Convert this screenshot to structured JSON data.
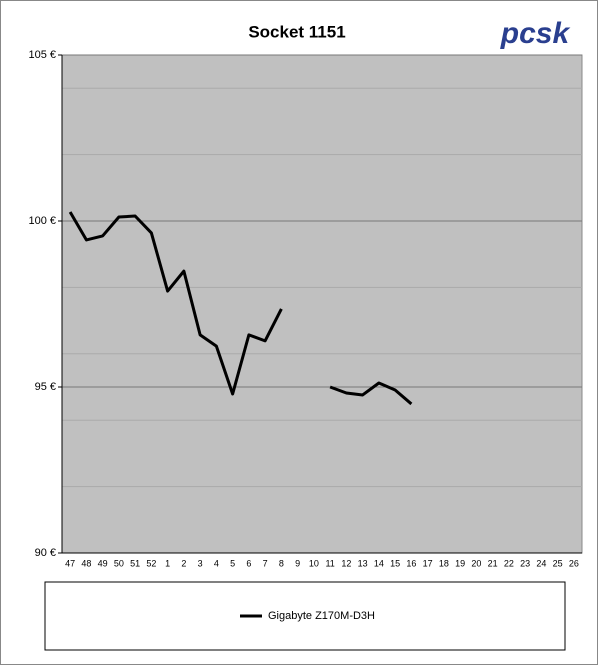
{
  "chart_data": {
    "type": "line",
    "title": "Socket 1151",
    "logo": "pcsk",
    "categories": [
      "47",
      "48",
      "49",
      "50",
      "51",
      "52",
      "1",
      "2",
      "3",
      "4",
      "5",
      "6",
      "7",
      "8",
      "9",
      "10",
      "11",
      "12",
      "13",
      "14",
      "15",
      "16",
      "17",
      "18",
      "19",
      "20",
      "21",
      "22",
      "23",
      "24",
      "25",
      "26"
    ],
    "series": [
      {
        "name": "Gigabyte Z170M-D3H",
        "color": "#000000",
        "values": [
          100.27,
          99.43,
          99.55,
          100.12,
          100.15,
          99.64,
          97.89,
          98.49,
          96.57,
          96.23,
          94.79,
          96.57,
          96.39,
          97.35,
          null,
          null,
          95.0,
          94.82,
          94.76,
          95.12,
          94.91,
          94.49,
          null,
          null,
          null,
          null,
          null,
          null,
          null,
          null,
          null,
          null
        ]
      }
    ],
    "ylim": [
      90,
      105
    ],
    "yticks": [
      {
        "value": 90,
        "label": "90 €"
      },
      {
        "value": 95,
        "label": "95 €"
      },
      {
        "value": 100,
        "label": "100 €"
      },
      {
        "value": 105,
        "label": "105 €"
      }
    ],
    "minor_grid": [
      92,
      94,
      96,
      98,
      102,
      104
    ],
    "grid": true,
    "legend": "bottom"
  }
}
